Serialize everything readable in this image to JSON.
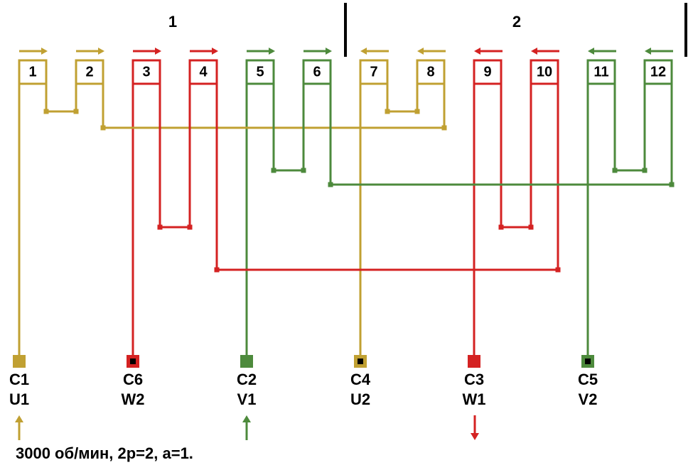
{
  "groups": [
    "1",
    "2"
  ],
  "slots": [
    "1",
    "2",
    "3",
    "4",
    "5",
    "6",
    "7",
    "8",
    "9",
    "10",
    "11",
    "12"
  ],
  "terminals": [
    {
      "code": "C1",
      "phase": "U1"
    },
    {
      "code": "C6",
      "phase": "W2"
    },
    {
      "code": "C2",
      "phase": "V1"
    },
    {
      "code": "C4",
      "phase": "U2"
    },
    {
      "code": "C3",
      "phase": "W1"
    },
    {
      "code": "C5",
      "phase": "V2"
    }
  ],
  "caption": "3000 об/мин, 2р=2, а=1."
}
